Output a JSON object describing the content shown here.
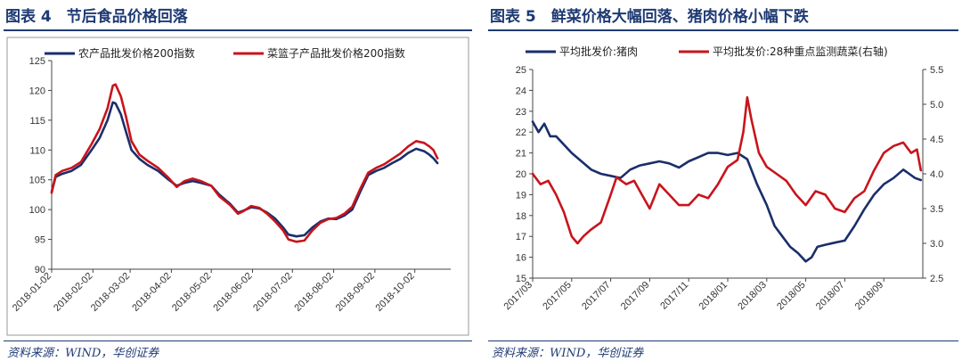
{
  "left": {
    "title": "图表 4　节后食品价格回落",
    "source": "资料来源：WIND，华创证券",
    "chart_data": {
      "type": "line",
      "ylim": [
        90,
        125
      ],
      "yticks": [
        90,
        95,
        100,
        105,
        110,
        115,
        120,
        125
      ],
      "xlim": [
        0,
        300
      ],
      "xticks": [
        {
          "label": "2018-01-02",
          "x": 0
        },
        {
          "label": "2018-02-02",
          "x": 31
        },
        {
          "label": "2018-03-02",
          "x": 59
        },
        {
          "label": "2018-04-02",
          "x": 90
        },
        {
          "label": "2018-05-02",
          "x": 120
        },
        {
          "label": "2018-06-02",
          "x": 151
        },
        {
          "label": "2018-07-02",
          "x": 181
        },
        {
          "label": "2018-08-02",
          "x": 212
        },
        {
          "label": "2018-09-02",
          "x": 243
        },
        {
          "label": "2018-10-02",
          "x": 273
        }
      ],
      "legend_position": "top",
      "series": [
        {
          "name": "农产品批发价格200指数",
          "color": "#1a2e6b",
          "points": [
            [
              0,
              103
            ],
            [
              3,
              105.5
            ],
            [
              8,
              106
            ],
            [
              15,
              106.5
            ],
            [
              22,
              107.5
            ],
            [
              30,
              110
            ],
            [
              36,
              112
            ],
            [
              42,
              115
            ],
            [
              46,
              118
            ],
            [
              48,
              117.8
            ],
            [
              52,
              116
            ],
            [
              56,
              113
            ],
            [
              60,
              110
            ],
            [
              66,
              108.5
            ],
            [
              72,
              107.5
            ],
            [
              80,
              106.5
            ],
            [
              88,
              105
            ],
            [
              94,
              104
            ],
            [
              100,
              104.5
            ],
            [
              106,
              104.8
            ],
            [
              112,
              104.5
            ],
            [
              120,
              104
            ],
            [
              126,
              102.5
            ],
            [
              134,
              101
            ],
            [
              140,
              99.5
            ],
            [
              144,
              99.8
            ],
            [
              150,
              100.4
            ],
            [
              156,
              100.2
            ],
            [
              162,
              99.5
            ],
            [
              168,
              98.5
            ],
            [
              174,
              97
            ],
            [
              178,
              95.8
            ],
            [
              184,
              95.5
            ],
            [
              190,
              95.7
            ],
            [
              196,
              97
            ],
            [
              202,
              98
            ],
            [
              208,
              98.5
            ],
            [
              214,
              98.4
            ],
            [
              220,
              99
            ],
            [
              226,
              100
            ],
            [
              232,
              103
            ],
            [
              238,
              105.8
            ],
            [
              244,
              106.5
            ],
            [
              250,
              107
            ],
            [
              256,
              107.8
            ],
            [
              262,
              108.5
            ],
            [
              268,
              109.5
            ],
            [
              274,
              110.2
            ],
            [
              280,
              109.8
            ],
            [
              284,
              109.2
            ],
            [
              287,
              108.6
            ],
            [
              290,
              107.8
            ]
          ]
        },
        {
          "name": "菜篮子产品批发价格200指数",
          "color": "#c8141c",
          "points": [
            [
              0,
              102.8
            ],
            [
              3,
              105.8
            ],
            [
              8,
              106.5
            ],
            [
              15,
              107
            ],
            [
              22,
              108
            ],
            [
              30,
              111
            ],
            [
              36,
              113.5
            ],
            [
              42,
              117
            ],
            [
              46,
              120.8
            ],
            [
              48,
              121
            ],
            [
              52,
              119
            ],
            [
              56,
              115.5
            ],
            [
              60,
              111.5
            ],
            [
              66,
              109.2
            ],
            [
              72,
              108.2
            ],
            [
              80,
              107
            ],
            [
              88,
              105.3
            ],
            [
              94,
              103.8
            ],
            [
              100,
              104.8
            ],
            [
              106,
              105.2
            ],
            [
              112,
              104.8
            ],
            [
              120,
              104
            ],
            [
              126,
              102.2
            ],
            [
              134,
              100.8
            ],
            [
              140,
              99.3
            ],
            [
              144,
              99.7
            ],
            [
              150,
              100.6
            ],
            [
              156,
              100.3
            ],
            [
              162,
              99.3
            ],
            [
              168,
              98
            ],
            [
              174,
              96.5
            ],
            [
              178,
              95
            ],
            [
              184,
              94.6
            ],
            [
              190,
              94.8
            ],
            [
              196,
              96.5
            ],
            [
              202,
              97.8
            ],
            [
              208,
              98.4
            ],
            [
              214,
              98.6
            ],
            [
              220,
              99.3
            ],
            [
              226,
              100.5
            ],
            [
              232,
              103.5
            ],
            [
              238,
              106.2
            ],
            [
              244,
              107
            ],
            [
              250,
              107.6
            ],
            [
              256,
              108.5
            ],
            [
              262,
              109.4
            ],
            [
              268,
              110.6
            ],
            [
              274,
              111.5
            ],
            [
              280,
              111.2
            ],
            [
              284,
              110.6
            ],
            [
              287,
              110
            ],
            [
              290,
              108.6
            ]
          ]
        }
      ]
    }
  },
  "right": {
    "title": "图表 5　鲜菜价格大幅回落、猪肉价格小幅下跌",
    "source": "资料来源：WIND，华创证券",
    "chart_data": {
      "type": "line",
      "ylim": [
        15,
        25
      ],
      "yticks": [
        15,
        16,
        17,
        18,
        19,
        20,
        21,
        22,
        23,
        24,
        25
      ],
      "y2lim": [
        2.5,
        5.5
      ],
      "y2ticks": [
        2.5,
        3.0,
        3.5,
        4.0,
        4.5,
        5.0,
        5.5
      ],
      "xlim": [
        0,
        20
      ],
      "xticks": [
        {
          "label": "2017/03",
          "x": 0
        },
        {
          "label": "2017/05",
          "x": 2
        },
        {
          "label": "2017/07",
          "x": 4
        },
        {
          "label": "2017/09",
          "x": 6
        },
        {
          "label": "2017/11",
          "x": 8
        },
        {
          "label": "2018/01",
          "x": 10
        },
        {
          "label": "2018/03",
          "x": 12
        },
        {
          "label": "2018/05",
          "x": 14
        },
        {
          "label": "2018/07",
          "x": 16
        },
        {
          "label": "2018/09",
          "x": 18
        }
      ],
      "legend_position": "top",
      "series": [
        {
          "name": "平均批发价:猪肉",
          "color": "#1a2e6b",
          "axis": "left",
          "points": [
            [
              0,
              22.5
            ],
            [
              0.3,
              22
            ],
            [
              0.6,
              22.4
            ],
            [
              0.9,
              21.8
            ],
            [
              1.2,
              21.8
            ],
            [
              1.6,
              21.4
            ],
            [
              2,
              21
            ],
            [
              2.5,
              20.6
            ],
            [
              3,
              20.2
            ],
            [
              3.5,
              20
            ],
            [
              4,
              19.9
            ],
            [
              4.5,
              19.8
            ],
            [
              5,
              20.2
            ],
            [
              5.5,
              20.4
            ],
            [
              6,
              20.5
            ],
            [
              6.5,
              20.6
            ],
            [
              7,
              20.5
            ],
            [
              7.5,
              20.3
            ],
            [
              8,
              20.6
            ],
            [
              8.5,
              20.8
            ],
            [
              9,
              21
            ],
            [
              9.5,
              21
            ],
            [
              10,
              20.9
            ],
            [
              10.5,
              21
            ],
            [
              11,
              20.7
            ],
            [
              11.5,
              19.5
            ],
            [
              12,
              18.5
            ],
            [
              12.4,
              17.5
            ],
            [
              12.8,
              17
            ],
            [
              13.2,
              16.5
            ],
            [
              13.6,
              16.2
            ],
            [
              14,
              15.8
            ],
            [
              14.3,
              16
            ],
            [
              14.6,
              16.5
            ],
            [
              15,
              16.6
            ],
            [
              15.5,
              16.7
            ],
            [
              16,
              16.8
            ],
            [
              16.5,
              17.5
            ],
            [
              17,
              18.3
            ],
            [
              17.5,
              19
            ],
            [
              18,
              19.5
            ],
            [
              18.5,
              19.8
            ],
            [
              19,
              20.2
            ],
            [
              19.3,
              20
            ],
            [
              19.6,
              19.8
            ],
            [
              19.9,
              19.7
            ]
          ]
        },
        {
          "name": "平均批发价:28种重点监测蔬菜(右轴)",
          "color": "#c8141c",
          "axis": "right",
          "points": [
            [
              0,
              4.0
            ],
            [
              0.4,
              3.85
            ],
            [
              0.8,
              3.9
            ],
            [
              1.2,
              3.7
            ],
            [
              1.6,
              3.45
            ],
            [
              2,
              3.1
            ],
            [
              2.3,
              3.0
            ],
            [
              2.6,
              3.1
            ],
            [
              3,
              3.2
            ],
            [
              3.5,
              3.3
            ],
            [
              4,
              3.7
            ],
            [
              4.3,
              3.95
            ],
            [
              4.8,
              3.85
            ],
            [
              5.2,
              3.9
            ],
            [
              5.6,
              3.7
            ],
            [
              6,
              3.5
            ],
            [
              6.5,
              3.85
            ],
            [
              7,
              3.7
            ],
            [
              7.5,
              3.55
            ],
            [
              8,
              3.55
            ],
            [
              8.5,
              3.7
            ],
            [
              9,
              3.65
            ],
            [
              9.5,
              3.85
            ],
            [
              10,
              4.1
            ],
            [
              10.5,
              4.2
            ],
            [
              10.8,
              4.6
            ],
            [
              11,
              5.1
            ],
            [
              11.2,
              4.8
            ],
            [
              11.6,
              4.3
            ],
            [
              12,
              4.1
            ],
            [
              12.5,
              4.0
            ],
            [
              13,
              3.9
            ],
            [
              13.5,
              3.7
            ],
            [
              14,
              3.55
            ],
            [
              14.5,
              3.75
            ],
            [
              15,
              3.7
            ],
            [
              15.5,
              3.5
            ],
            [
              16,
              3.45
            ],
            [
              16.5,
              3.65
            ],
            [
              17,
              3.75
            ],
            [
              17.5,
              4.05
            ],
            [
              18,
              4.3
            ],
            [
              18.5,
              4.4
            ],
            [
              19,
              4.45
            ],
            [
              19.4,
              4.3
            ],
            [
              19.7,
              4.35
            ],
            [
              19.9,
              4.05
            ]
          ]
        }
      ]
    }
  }
}
